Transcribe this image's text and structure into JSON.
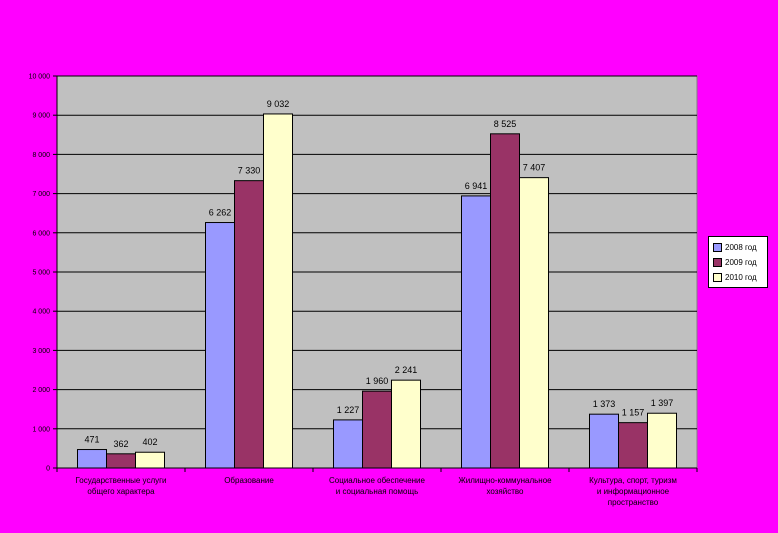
{
  "chart_data": {
    "type": "bar",
    "categories": [
      [
        "Государственные услуги",
        "общего характера"
      ],
      [
        "Образование"
      ],
      [
        "Социальное обеспечение",
        "и социальная помощь"
      ],
      [
        "Жилищно-коммунальное",
        "хозяйство"
      ],
      [
        "Культура, спорт, туризм",
        "и информационное",
        "пространство"
      ]
    ],
    "series": [
      {
        "name": "2008 год",
        "color": "#9999FF",
        "values": [
          471,
          6262,
          1227,
          6941,
          1373
        ],
        "labels": [
          "471",
          "6 262",
          "1 227",
          "6 941",
          "1 373"
        ]
      },
      {
        "name": "2009 год",
        "color": "#993366",
        "values": [
          362,
          7330,
          1960,
          8525,
          1157
        ],
        "labels": [
          "362",
          "7 330",
          "1 960",
          "8 525",
          "1 157"
        ]
      },
      {
        "name": "2010 год",
        "color": "#FFFFCC",
        "values": [
          402,
          9032,
          2241,
          7407,
          1397
        ],
        "labels": [
          "402",
          "9 032",
          "2 241",
          "7 407",
          "1 397"
        ]
      }
    ],
    "ylim": [
      0,
      10000
    ],
    "yticks": [
      0,
      1000,
      2000,
      3000,
      4000,
      5000,
      6000,
      7000,
      8000,
      9000,
      10000
    ],
    "ytick_labels": [
      "0",
      "1 000",
      "2 000",
      "3 000",
      "4 000",
      "5 000",
      "6 000",
      "7 000",
      "8 000",
      "9 000",
      "10 000"
    ],
    "grid": true,
    "legend_position": "right",
    "plot_background": "#C0C0C0"
  },
  "legend": {
    "items": [
      "2008 год",
      "2009 год",
      "2010 год"
    ]
  }
}
